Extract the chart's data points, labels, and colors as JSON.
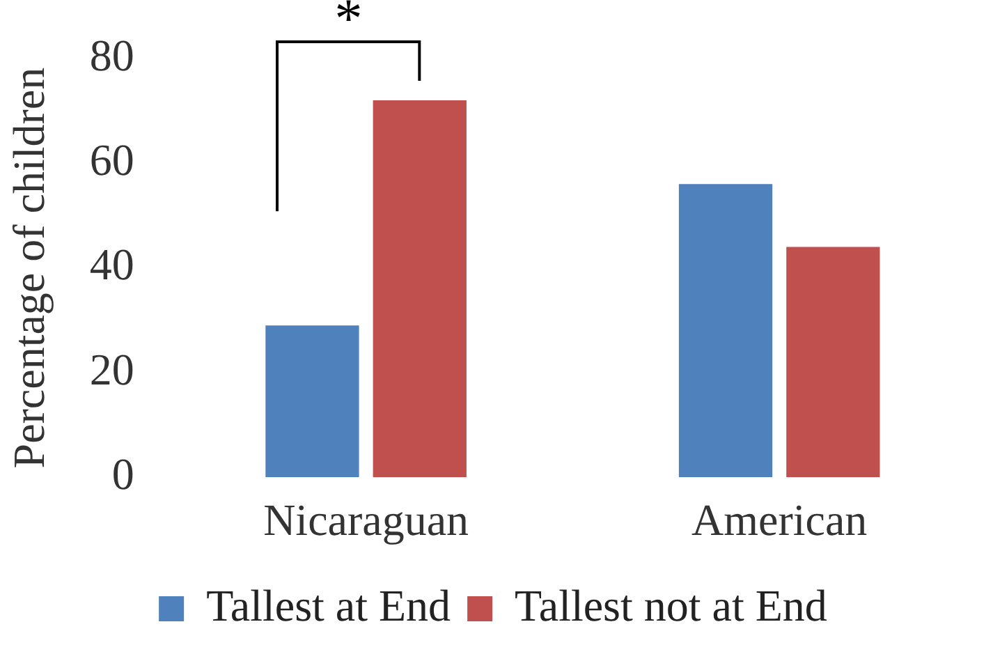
{
  "chart_data": {
    "type": "bar",
    "ylabel": "Percentage of children",
    "categories": [
      "Nicaraguan",
      "American"
    ],
    "series": [
      {
        "name": "Tallest at End",
        "color": "#4f81bd",
        "values": [
          29,
          56
        ]
      },
      {
        "name": "Tallest not at End",
        "color": "#c0504d",
        "values": [
          72,
          44
        ]
      }
    ],
    "ylim": [
      0,
      80
    ],
    "yticks": [
      0,
      20,
      40,
      60,
      80
    ],
    "grid": false,
    "legend": "bottom",
    "annotations": [
      "*"
    ]
  }
}
